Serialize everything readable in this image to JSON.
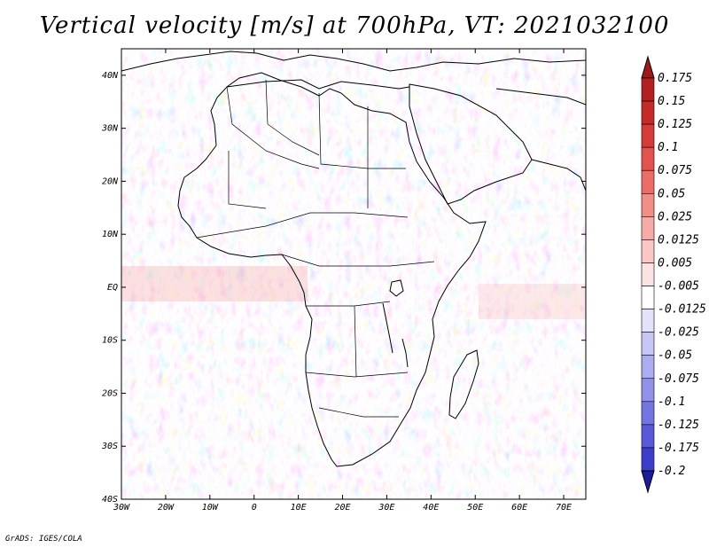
{
  "title": "Vertical velocity [m/s] at 700hPa, VT: 2021032100",
  "footer": "GrADS: IGES/COLA",
  "map": {
    "lon_range": [
      -30,
      75
    ],
    "lat_range": [
      -40,
      45
    ],
    "lat_ticks": [
      {
        "value": 40,
        "label": "40N"
      },
      {
        "value": 30,
        "label": "30N"
      },
      {
        "value": 20,
        "label": "20N"
      },
      {
        "value": 10,
        "label": "10N"
      },
      {
        "value": 0,
        "label": "EQ"
      },
      {
        "value": -10,
        "label": "10S"
      },
      {
        "value": -20,
        "label": "20S"
      },
      {
        "value": -30,
        "label": "30S"
      },
      {
        "value": -40,
        "label": "40S"
      }
    ],
    "lon_ticks": [
      {
        "value": -30,
        "label": "30W"
      },
      {
        "value": -20,
        "label": "20W"
      },
      {
        "value": -10,
        "label": "10W"
      },
      {
        "value": 0,
        "label": "0"
      },
      {
        "value": 10,
        "label": "10E"
      },
      {
        "value": 20,
        "label": "20E"
      },
      {
        "value": 30,
        "label": "30E"
      },
      {
        "value": 40,
        "label": "40E"
      },
      {
        "value": 50,
        "label": "50E"
      },
      {
        "value": 60,
        "label": "60E"
      },
      {
        "value": 70,
        "label": "70E"
      }
    ]
  },
  "colorbar": {
    "levels": [
      {
        "label": "0.175",
        "color": "#b3201f"
      },
      {
        "label": "0.15",
        "color": "#c52a28"
      },
      {
        "label": "0.125",
        "color": "#d63b37"
      },
      {
        "label": "0.1",
        "color": "#e4524d"
      },
      {
        "label": "0.075",
        "color": "#ec6c66"
      },
      {
        "label": "0.05",
        "color": "#f28d88"
      },
      {
        "label": "0.025",
        "color": "#f6aba7"
      },
      {
        "label": "0.0125",
        "color": "#f9c8c6"
      },
      {
        "label": "0.005",
        "color": "#fce3e2"
      },
      {
        "label": "-0.005",
        "color": "#ffffff"
      },
      {
        "label": "-0.0125",
        "color": "#e2e2fb"
      },
      {
        "label": "-0.025",
        "color": "#c7c7f5"
      },
      {
        "label": "-0.05",
        "color": "#acacf0"
      },
      {
        "label": "-0.075",
        "color": "#9191ea"
      },
      {
        "label": "-0.1",
        "color": "#7575e2"
      },
      {
        "label": "-0.125",
        "color": "#5959d9"
      },
      {
        "label": "-0.175",
        "color": "#3d3dcc"
      },
      {
        "label": "-0.2",
        "color": "#2828b8"
      }
    ],
    "top_color": "#a01818",
    "bottom_color": "#1c1c9e"
  }
}
